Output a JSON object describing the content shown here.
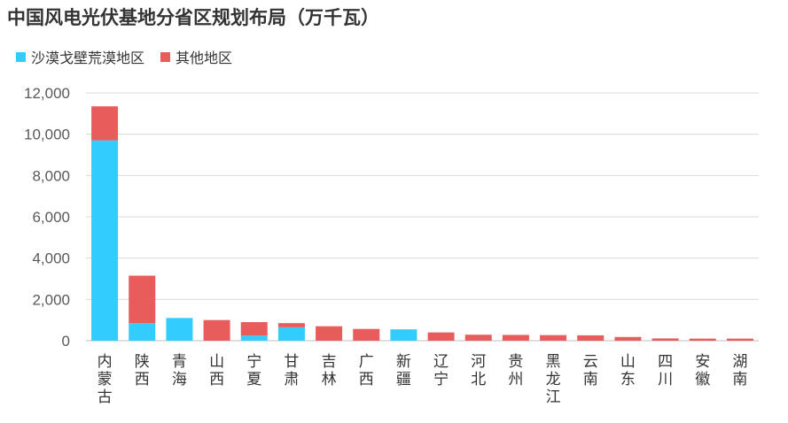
{
  "chart_data": {
    "type": "bar",
    "stacked": true,
    "title": "中国风电光伏基地分省区规划布局（万千瓦）",
    "legend_position": "top-left",
    "grid": true,
    "categories": [
      "内蒙古",
      "陕西",
      "青海",
      "山西",
      "宁夏",
      "甘肃",
      "吉林",
      "广西",
      "新疆",
      "辽宁",
      "河北",
      "贵州",
      "黑龙江",
      "云南",
      "山东",
      "四川",
      "安徽",
      "湖南"
    ],
    "series": [
      {
        "name": "沙漠戈壁荒漠地区",
        "color": "#33ccff",
        "values": [
          9700,
          850,
          1100,
          0,
          250,
          650,
          0,
          0,
          550,
          0,
          0,
          0,
          0,
          0,
          0,
          0,
          0,
          0
        ]
      },
      {
        "name": "其他地区",
        "color": "#e85c5c",
        "values": [
          1650,
          2300,
          0,
          1000,
          650,
          200,
          700,
          570,
          0,
          400,
          290,
          280,
          270,
          260,
          180,
          110,
          100,
          100
        ]
      }
    ],
    "ylim": [
      0,
      12000
    ],
    "yticks": [
      "0",
      "2,000",
      "4,000",
      "6,000",
      "8,000",
      "10,000",
      "12,000"
    ],
    "xlabel": "",
    "ylabel": ""
  }
}
